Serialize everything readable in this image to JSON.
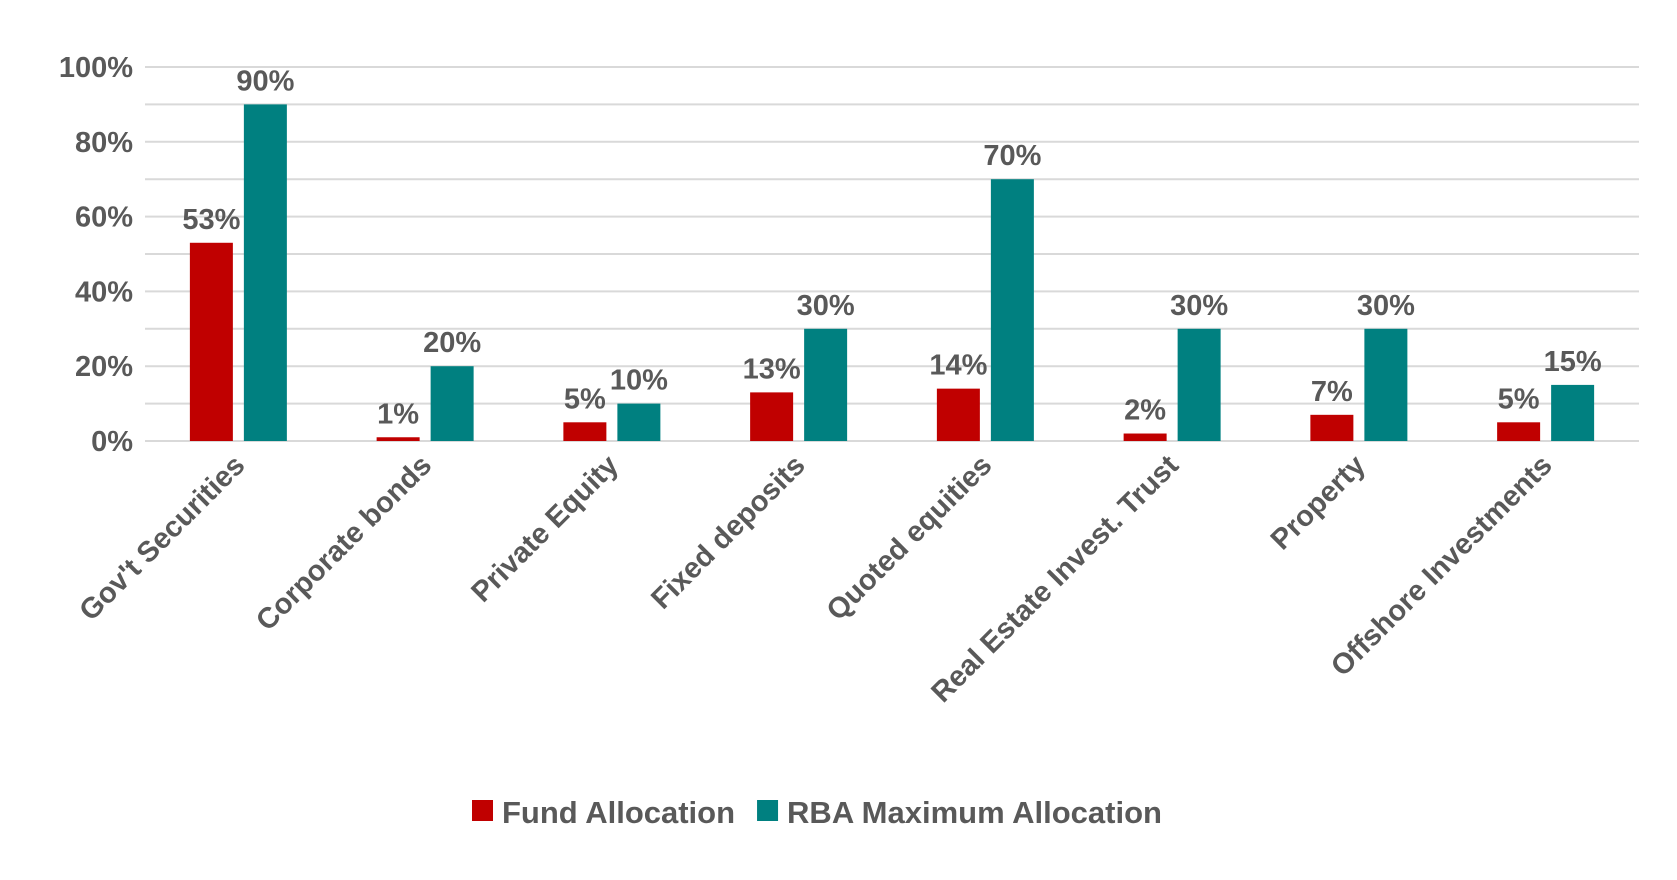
{
  "chart_data": {
    "type": "bar",
    "title": "",
    "xlabel": "",
    "ylabel": "",
    "categories": [
      "Gov't Securities",
      "Corporate bonds",
      "Private Equity",
      "Fixed deposits",
      "Quoted equities",
      "Real Estate Invest. Trust",
      "Property",
      "Offshore Investments"
    ],
    "series": [
      {
        "name": "Fund Allocation",
        "color": "#C00000",
        "values": [
          53,
          1,
          5,
          13,
          14,
          2,
          7,
          5
        ],
        "labels": [
          "53%",
          "1%",
          "5%",
          "13%",
          "14%",
          "2%",
          "7%",
          "5%"
        ]
      },
      {
        "name": "RBA Maximum Allocation",
        "color": "#008080",
        "values": [
          90,
          20,
          10,
          30,
          70,
          30,
          30,
          15
        ],
        "labels": [
          "90%",
          "20%",
          "10%",
          "30%",
          "70%",
          "30%",
          "30%",
          "15%"
        ]
      }
    ],
    "ylim": [
      0,
      100
    ],
    "yticks": [
      "0%",
      "20%",
      "40%",
      "60%",
      "80%",
      "100%"
    ],
    "grid": true,
    "legend": "bottom"
  }
}
